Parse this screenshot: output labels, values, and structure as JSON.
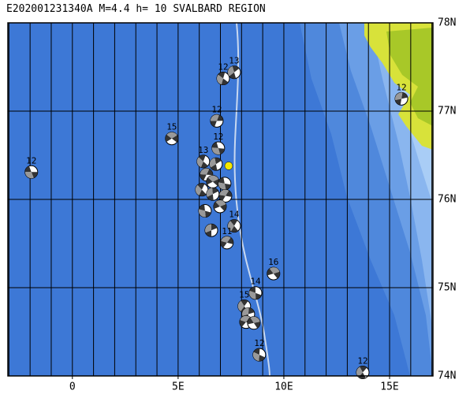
{
  "map": {
    "title": "E202001231340A  M=4.4  h= 10 SVALBARD REGION",
    "xlim": [
      -3.05,
      17.05
    ],
    "ylim": [
      74,
      78
    ],
    "xticks": [
      0,
      {
        "value": 5,
        "label": "5E"
      },
      {
        "value": 10,
        "label": "10E"
      },
      {
        "value": 15,
        "label": "15E"
      }
    ],
    "yticks": [
      {
        "value": 74,
        "label": "74N"
      },
      {
        "value": 75,
        "label": "75N"
      },
      {
        "value": 76,
        "label": "76N"
      },
      {
        "value": 77,
        "label": "77N"
      },
      {
        "value": 78,
        "label": "78N"
      }
    ],
    "meridians": [
      -3,
      -2,
      -1,
      0,
      1,
      2,
      3,
      4,
      5,
      6,
      7,
      8,
      9,
      10,
      11,
      12,
      13,
      14,
      15,
      16,
      17
    ],
    "epicenter": {
      "lon": 7.39,
      "lat": 76.38
    },
    "events": [
      {
        "lon": -1.94,
        "lat": 76.31,
        "label": "12"
      },
      {
        "lon": 7.13,
        "lat": 77.37,
        "label": "12"
      },
      {
        "lon": 7.65,
        "lat": 77.44,
        "label": "13"
      },
      {
        "lon": 6.83,
        "lat": 76.89,
        "label": "12"
      },
      {
        "lon": 4.7,
        "lat": 76.69,
        "label": "15"
      },
      {
        "lon": 6.9,
        "lat": 76.58,
        "label": "12"
      },
      {
        "lon": 6.19,
        "lat": 76.43,
        "label": "13"
      },
      {
        "lon": 6.79,
        "lat": 76.4
      },
      {
        "lon": 6.34,
        "lat": 76.28
      },
      {
        "lon": 6.64,
        "lat": 76.2
      },
      {
        "lon": 7.2,
        "lat": 76.18
      },
      {
        "lon": 6.12,
        "lat": 76.11
      },
      {
        "lon": 6.64,
        "lat": 76.06
      },
      {
        "lon": 7.24,
        "lat": 76.04
      },
      {
        "lon": 6.98,
        "lat": 75.92
      },
      {
        "lon": 6.27,
        "lat": 75.87
      },
      {
        "lon": 7.65,
        "lat": 75.7,
        "label": "14"
      },
      {
        "lon": 6.57,
        "lat": 75.65
      },
      {
        "lon": 7.31,
        "lat": 75.51,
        "label": "11"
      },
      {
        "lon": 9.51,
        "lat": 75.16,
        "label": "16"
      },
      {
        "lon": 8.66,
        "lat": 74.94,
        "label": "14"
      },
      {
        "lon": 8.13,
        "lat": 74.79,
        "label": "15"
      },
      {
        "lon": 8.32,
        "lat": 74.7
      },
      {
        "lon": 8.21,
        "lat": 74.61
      },
      {
        "lon": 8.58,
        "lat": 74.6
      },
      {
        "lon": 8.84,
        "lat": 74.24,
        "label": "12"
      },
      {
        "lon": 13.73,
        "lat": 74.04,
        "label": "12"
      },
      {
        "lon": 15.56,
        "lat": 77.14,
        "label": "12"
      }
    ]
  }
}
